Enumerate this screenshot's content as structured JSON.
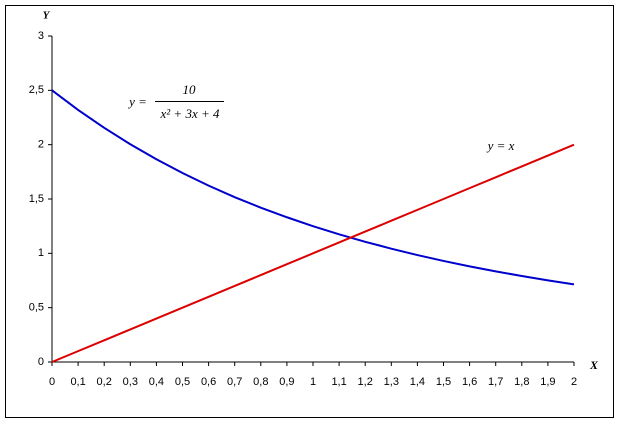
{
  "chart_data": {
    "type": "line",
    "x_label": "X",
    "y_label": "Y",
    "x": [
      0,
      0.1,
      0.2,
      0.3,
      0.4,
      0.5,
      0.6,
      0.7,
      0.8,
      0.9,
      1,
      1.1,
      1.2,
      1.3,
      1.4,
      1.5,
      1.6,
      1.7,
      1.8,
      1.9,
      2
    ],
    "series": [
      {
        "color": "#0000cc",
        "values": [
          2.5,
          2.32,
          2.155,
          2.004,
          1.866,
          1.739,
          1.623,
          1.517,
          1.42,
          1.332,
          1.25,
          1.175,
          1.106,
          1.043,
          0.984,
          0.93,
          0.88,
          0.834,
          0.791,
          0.751,
          0.714
        ]
      },
      {
        "color": "#dd0000",
        "values": [
          0,
          0.1,
          0.2,
          0.3,
          0.4,
          0.5,
          0.6,
          0.7,
          0.8,
          0.9,
          1,
          1.1,
          1.2,
          1.3,
          1.4,
          1.5,
          1.6,
          1.7,
          1.8,
          1.9,
          2
        ]
      }
    ],
    "xlim": [
      0,
      2
    ],
    "xticks": [
      0,
      {
        "value": 0.1,
        "label": "0,1"
      },
      {
        "value": 0.2,
        "label": "0,2"
      },
      {
        "value": 0.3,
        "label": "0,3"
      },
      {
        "value": 0.4,
        "label": "0,4"
      },
      {
        "value": 0.5,
        "label": "0,5"
      },
      {
        "value": 0.6,
        "label": "0,6"
      },
      {
        "value": 0.7,
        "label": "0,7"
      },
      {
        "value": 0.8,
        "label": "0,8"
      },
      {
        "value": 0.9,
        "label": "0,9"
      },
      1,
      {
        "value": 1.1,
        "label": "1,1"
      },
      {
        "value": 1.2,
        "label": "1,2"
      },
      {
        "value": 1.3,
        "label": "1,3"
      },
      {
        "value": 1.4,
        "label": "1,4"
      },
      {
        "value": 1.5,
        "label": "1,5"
      },
      {
        "value": 1.6,
        "label": "1,6"
      },
      {
        "value": 1.7,
        "label": "1,7"
      },
      {
        "value": 1.8,
        "label": "1,8"
      },
      {
        "value": 1.9,
        "label": "1,9"
      },
      2
    ],
    "ylim": [
      0,
      3
    ],
    "yticks": [
      0,
      {
        "value": 0.5,
        "label": "0,5"
      },
      1,
      {
        "value": 1.5,
        "label": "1,5"
      },
      2,
      {
        "value": 2.5,
        "label": "2,5"
      },
      3
    ],
    "annotations": [
      "y =",
      "10",
      "x² + 3x + 4",
      "y = x"
    ]
  }
}
